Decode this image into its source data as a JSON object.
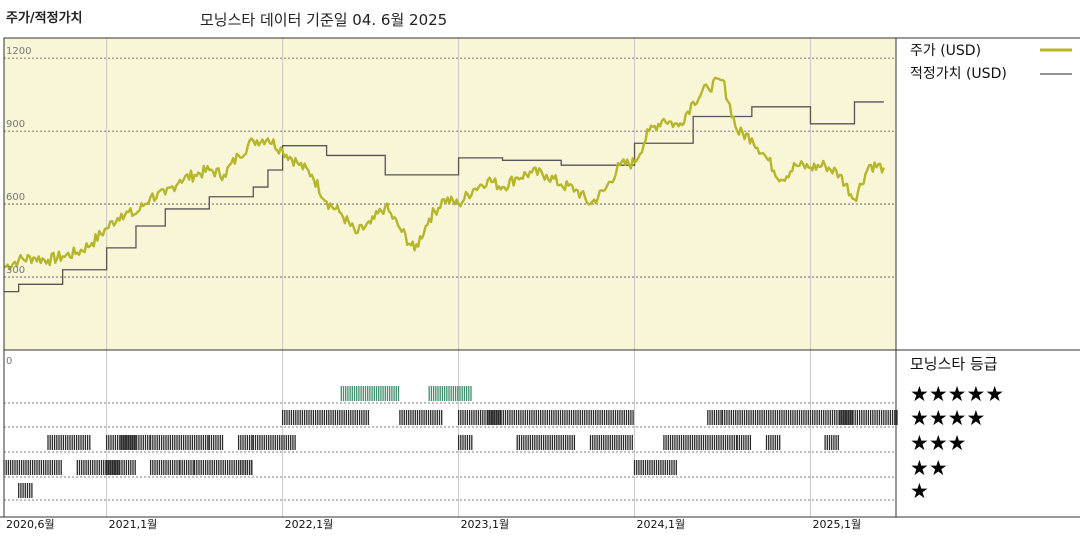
{
  "header": {
    "left_label": "주가/적정가치",
    "title": "모닝스타 데이터 기준일 04. 6월 2025"
  },
  "colors": {
    "price": "#b5b62a",
    "fair_value": "#555555",
    "price_panel_bg": "#f9f5d7",
    "rating_bar": "#2b2b2b",
    "rating_bar_5": "#3e8f6a"
  },
  "chart_data": {
    "type": "line",
    "title": "모닝스타 데이터 기준일 04. 6월 2025",
    "y_axis": {
      "ticks": [
        0,
        300,
        600,
        900,
        1200
      ],
      "ylim": [
        0,
        1250
      ]
    },
    "x_axis": {
      "start": "2020-06",
      "end": "2025-06",
      "ticks": [
        {
          "date": "2020-06",
          "label": "2020,6월"
        },
        {
          "date": "2021-01",
          "label": "2021,1월"
        },
        {
          "date": "2022-01",
          "label": "2022,1월"
        },
        {
          "date": "2023-01",
          "label": "2023,1월"
        },
        {
          "date": "2024-01",
          "label": "2024,1월"
        },
        {
          "date": "2025-01",
          "label": "2025,1월"
        }
      ]
    },
    "grid": true,
    "legend_position": "right",
    "series": [
      {
        "name": "주가 (USD)",
        "color": "#b5b62a",
        "points": [
          [
            "2020-06",
            340
          ],
          [
            "2020-07",
            370
          ],
          [
            "2020-08",
            380
          ],
          [
            "2020-09",
            370
          ],
          [
            "2020-10",
            385
          ],
          [
            "2020-11",
            400
          ],
          [
            "2020-12",
            440
          ],
          [
            "2021-01",
            500
          ],
          [
            "2021-02",
            560
          ],
          [
            "2021-03",
            560
          ],
          [
            "2021-04",
            630
          ],
          [
            "2021-05",
            640
          ],
          [
            "2021-06",
            700
          ],
          [
            "2021-07",
            720
          ],
          [
            "2021-08",
            740
          ],
          [
            "2021-09",
            720
          ],
          [
            "2021-10",
            800
          ],
          [
            "2021-11",
            860
          ],
          [
            "2021-12",
            870
          ],
          [
            "2022-01",
            820
          ],
          [
            "2022-02",
            770
          ],
          [
            "2022-03",
            720
          ],
          [
            "2022-04",
            610
          ],
          [
            "2022-05",
            560
          ],
          [
            "2022-06",
            480
          ],
          [
            "2022-07",
            520
          ],
          [
            "2022-08",
            590
          ],
          [
            "2022-09",
            500
          ],
          [
            "2022-10",
            410
          ],
          [
            "2022-11",
            540
          ],
          [
            "2022-12",
            620
          ],
          [
            "2023-01",
            600
          ],
          [
            "2023-02",
            660
          ],
          [
            "2023-03",
            700
          ],
          [
            "2023-04",
            670
          ],
          [
            "2023-05",
            710
          ],
          [
            "2023-06",
            730
          ],
          [
            "2023-07",
            720
          ],
          [
            "2023-08",
            680
          ],
          [
            "2023-09",
            660
          ],
          [
            "2023-10",
            600
          ],
          [
            "2023-11",
            660
          ],
          [
            "2023-12",
            760
          ],
          [
            "2024-01",
            770
          ],
          [
            "2024-02",
            900
          ],
          [
            "2024-03",
            950
          ],
          [
            "2024-04",
            920
          ],
          [
            "2024-05",
            1020
          ],
          [
            "2024-06",
            1080
          ],
          [
            "2024-07",
            1110
          ],
          [
            "2024-08",
            900
          ],
          [
            "2024-09",
            870
          ],
          [
            "2024-10",
            790
          ],
          [
            "2024-11",
            700
          ],
          [
            "2024-12",
            760
          ],
          [
            "2025-01",
            750
          ],
          [
            "2025-02",
            760
          ],
          [
            "2025-03",
            720
          ],
          [
            "2025-04",
            620
          ],
          [
            "2025-05",
            760
          ],
          [
            "2025-06",
            750
          ]
        ]
      },
      {
        "name": "적정가치 (USD)",
        "color": "#555555",
        "step": true,
        "points": [
          [
            "2020-06",
            240
          ],
          [
            "2020-07",
            270
          ],
          [
            "2020-10",
            330
          ],
          [
            "2021-01",
            420
          ],
          [
            "2021-03",
            510
          ],
          [
            "2021-05",
            580
          ],
          [
            "2021-08",
            630
          ],
          [
            "2021-11",
            670
          ],
          [
            "2021-12",
            740
          ],
          [
            "2022-01",
            840
          ],
          [
            "2022-04",
            800
          ],
          [
            "2022-08",
            720
          ],
          [
            "2023-01",
            790
          ],
          [
            "2023-04",
            780
          ],
          [
            "2023-08",
            760
          ],
          [
            "2024-01",
            850
          ],
          [
            "2024-05",
            960
          ],
          [
            "2024-09",
            1000
          ],
          [
            "2025-01",
            930
          ],
          [
            "2025-04",
            1020
          ],
          [
            "2025-06",
            1020
          ]
        ]
      }
    ],
    "rating_panel": {
      "title": "모닝스타 등급",
      "rows": [
        {
          "stars": "★★★★★",
          "ranges": [
            [
              "2022-05",
              "2022-08"
            ],
            [
              "2022-11",
              "2023-01"
            ]
          ]
        },
        {
          "stars": "★★★★",
          "ranges": [
            [
              "2022-01",
              "2022-06"
            ],
            [
              "2022-09",
              "2022-11"
            ],
            [
              "2023-01",
              "2023-03"
            ],
            [
              "2023-03",
              "2023-08"
            ],
            [
              "2023-09",
              "2023-12"
            ],
            [
              "2024-06",
              "2024-06"
            ],
            [
              "2024-07",
              "2025-03"
            ],
            [
              "2025-03",
              "2025-06"
            ]
          ]
        },
        {
          "stars": "★★★",
          "ranges": [
            [
              "2020-09",
              "2020-11"
            ],
            [
              "2021-01",
              "2021-02"
            ],
            [
              "2021-02",
              "2021-03"
            ],
            [
              "2021-04",
              "2021-07"
            ],
            [
              "2021-08",
              "2021-08"
            ],
            [
              "2021-10",
              "2021-10"
            ],
            [
              "2021-11",
              "2022-01"
            ],
            [
              "2023-01",
              "2023-01"
            ],
            [
              "2023-05",
              "2023-07"
            ],
            [
              "2023-08",
              "2023-08"
            ],
            [
              "2023-10",
              "2023-12"
            ],
            [
              "2024-03",
              "2024-07"
            ],
            [
              "2024-08",
              "2024-08"
            ],
            [
              "2024-10",
              "2024-10"
            ],
            [
              "2025-02",
              "2025-02"
            ]
          ]
        },
        {
          "stars": "★★",
          "ranges": [
            [
              "2020-06",
              "2020-09"
            ],
            [
              "2020-11",
              "2021-01"
            ],
            [
              "2021-01",
              "2021-02"
            ],
            [
              "2021-04",
              "2021-05"
            ],
            [
              "2021-06",
              "2021-06"
            ],
            [
              "2021-07",
              "2021-10"
            ],
            [
              "2021-10",
              "2021-10"
            ],
            [
              "2024-01",
              "2024-03"
            ]
          ]
        },
        {
          "stars": "★",
          "ranges": [
            [
              "2020-07",
              "2020-07"
            ]
          ]
        }
      ]
    }
  }
}
